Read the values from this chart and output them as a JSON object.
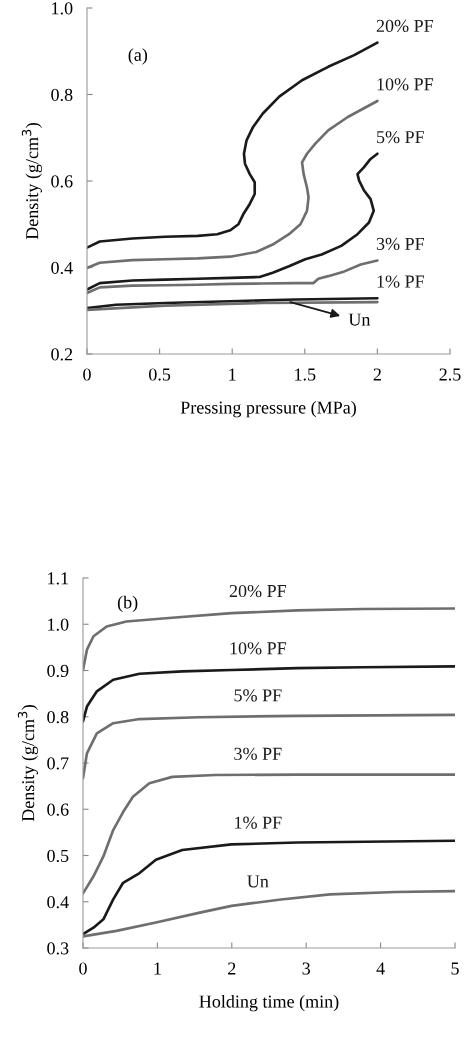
{
  "chart_data": [
    {
      "type": "line",
      "xlabel": "Pressing pressure (MPa)",
      "ylabel": "Density (g/cm$^{3}$)",
      "xlim": [
        0,
        2.5
      ],
      "ylim": [
        0.2,
        1.0
      ],
      "xticks": [
        0,
        0.5,
        1,
        1.5,
        2,
        2.5
      ],
      "yticks": [
        {
          "value": 0.2,
          "label": "0.2"
        },
        {
          "value": 0.4,
          "label": "0.4"
        },
        {
          "value": 0.6,
          "label": "0.6"
        },
        {
          "value": 0.8,
          "label": "0.8"
        },
        {
          "value": 1.0,
          "label": "1.0"
        }
      ],
      "grid": false,
      "legend": false,
      "marker": "none",
      "line_style": "solid",
      "annotations": [
        "(a)",
        "Un"
      ],
      "series": [
        {
          "name": "20% PF",
          "color": "#1a1a1a",
          "x": [
            0,
            0.088,
            0.312,
            0.537,
            0.762,
            0.897,
            0.987,
            1.043,
            1.076,
            1.121,
            1.155,
            1.155,
            1.121,
            1.088,
            1.081,
            1.099,
            1.144,
            1.211,
            1.324,
            1.481,
            1.661,
            1.84,
            2.0
          ],
          "values": [
            0.446,
            0.46,
            0.467,
            0.471,
            0.473,
            0.477,
            0.486,
            0.5,
            0.523,
            0.547,
            0.57,
            0.597,
            0.616,
            0.64,
            0.663,
            0.694,
            0.725,
            0.756,
            0.795,
            0.833,
            0.864,
            0.891,
            0.92
          ]
        },
        {
          "name": "10% PF",
          "color": "#6e6e6e",
          "x": [
            0,
            0.088,
            0.312,
            0.537,
            0.762,
            0.987,
            1.166,
            1.279,
            1.391,
            1.47,
            1.515,
            1.526,
            1.515,
            1.492,
            1.481,
            1.515,
            1.571,
            1.661,
            1.796,
            2.0
          ],
          "values": [
            0.399,
            0.411,
            0.417,
            0.419,
            0.421,
            0.425,
            0.436,
            0.453,
            0.477,
            0.5,
            0.531,
            0.562,
            0.585,
            0.616,
            0.643,
            0.663,
            0.686,
            0.717,
            0.748,
            0.785
          ]
        },
        {
          "name": "5% PF",
          "color": "#1a1a1a",
          "x": [
            0,
            0.088,
            0.312,
            0.537,
            0.762,
            0.987,
            1.189,
            1.279,
            1.391,
            1.503,
            1.616,
            1.751,
            1.863,
            1.942,
            1.975,
            1.953,
            1.908,
            1.874,
            1.863,
            1.908,
            1.953,
            2.0
          ],
          "values": [
            0.349,
            0.364,
            0.37,
            0.372,
            0.374,
            0.376,
            0.378,
            0.388,
            0.403,
            0.419,
            0.43,
            0.45,
            0.477,
            0.504,
            0.531,
            0.558,
            0.578,
            0.601,
            0.616,
            0.632,
            0.651,
            0.663
          ]
        },
        {
          "name": "3% PF",
          "color": "#6e6e6e",
          "x": [
            0,
            0.088,
            0.312,
            0.537,
            0.762,
            0.987,
            1.211,
            1.436,
            1.56,
            1.593,
            1.661,
            1.773,
            1.885,
            2.0
          ],
          "values": [
            0.341,
            0.354,
            0.358,
            0.359,
            0.36,
            0.362,
            0.363,
            0.364,
            0.364,
            0.374,
            0.38,
            0.391,
            0.407,
            0.416
          ]
        },
        {
          "name": "1% PF",
          "color": "#1a1a1a",
          "x": [
            0,
            0.2,
            0.537,
            0.987,
            1.436,
            2.0
          ],
          "values": [
            0.306,
            0.314,
            0.318,
            0.322,
            0.326,
            0.329
          ]
        },
        {
          "color": "#6e6e6e",
          "x": [
            0,
            0.537,
            1.211,
            2.0
          ],
          "values": [
            0.302,
            0.312,
            0.318,
            0.32
          ]
        }
      ]
    },
    {
      "type": "line",
      "xlabel": "Holding time (min)",
      "ylabel": "Density (g/cm$^{3}$)",
      "xlim": [
        0,
        5
      ],
      "ylim": [
        0.3,
        1.1
      ],
      "xticks": [
        0,
        1,
        2,
        3,
        4,
        5
      ],
      "yticks": [
        {
          "value": 0.3,
          "label": "0.3"
        },
        {
          "value": 0.4,
          "label": "0.4"
        },
        {
          "value": 0.5,
          "label": "0.5"
        },
        {
          "value": 0.6,
          "label": "0.6"
        },
        {
          "value": 0.7,
          "label": "0.7"
        },
        {
          "value": 0.8,
          "label": "0.8"
        },
        {
          "value": 0.9,
          "label": "0.9"
        },
        {
          "value": 1.0,
          "label": "1.0"
        },
        {
          "value": 1.1,
          "label": "1.1"
        }
      ],
      "grid": false,
      "legend": false,
      "marker": "none",
      "line_style": "solid",
      "annotations": [
        "(b)"
      ],
      "series": [
        {
          "name": "20% PF",
          "color": "#6e6e6e",
          "x": [
            0,
            0.053,
            0.141,
            0.318,
            0.583,
            1.113,
            1.996,
            2.88,
            3.76,
            5.0
          ],
          "values": [
            0.901,
            0.945,
            0.974,
            0.995,
            1.006,
            1.013,
            1.024,
            1.03,
            1.033,
            1.034
          ]
        },
        {
          "name": "10% PF",
          "color": "#1a1a1a",
          "x": [
            0,
            0.053,
            0.186,
            0.406,
            0.76,
            1.334,
            1.996,
            2.88,
            3.76,
            5.0
          ],
          "values": [
            0.79,
            0.822,
            0.855,
            0.88,
            0.893,
            0.898,
            0.901,
            0.905,
            0.907,
            0.909
          ]
        },
        {
          "name": "5% PF",
          "color": "#6e6e6e",
          "x": [
            0,
            0.053,
            0.186,
            0.406,
            0.76,
            1.555,
            2.88,
            5.0
          ],
          "values": [
            0.667,
            0.721,
            0.764,
            0.786,
            0.795,
            0.799,
            0.802,
            0.804
          ]
        },
        {
          "name": "3% PF",
          "color": "#6e6e6e",
          "x": [
            0,
            0.141,
            0.274,
            0.406,
            0.539,
            0.671,
            0.892,
            1.2,
            1.776,
            2.88,
            5.0
          ],
          "values": [
            0.418,
            0.455,
            0.498,
            0.555,
            0.594,
            0.627,
            0.656,
            0.67,
            0.674,
            0.675,
            0.675
          ]
        },
        {
          "name": "1% PF",
          "color": "#1a1a1a",
          "x": [
            0,
            0.141,
            0.274,
            0.406,
            0.539,
            0.76,
            0.98,
            1.334,
            1.996,
            2.88,
            5.0
          ],
          "values": [
            0.33,
            0.344,
            0.362,
            0.405,
            0.441,
            0.462,
            0.491,
            0.512,
            0.524,
            0.528,
            0.532
          ]
        },
        {
          "name": "Un",
          "color": "#6e6e6e",
          "x": [
            0,
            0.45,
            0.98,
            1.555,
            1.996,
            2.66,
            3.32,
            4.2,
            5.0
          ],
          "values": [
            0.325,
            0.337,
            0.355,
            0.376,
            0.391,
            0.405,
            0.416,
            0.421,
            0.423
          ]
        }
      ]
    }
  ]
}
